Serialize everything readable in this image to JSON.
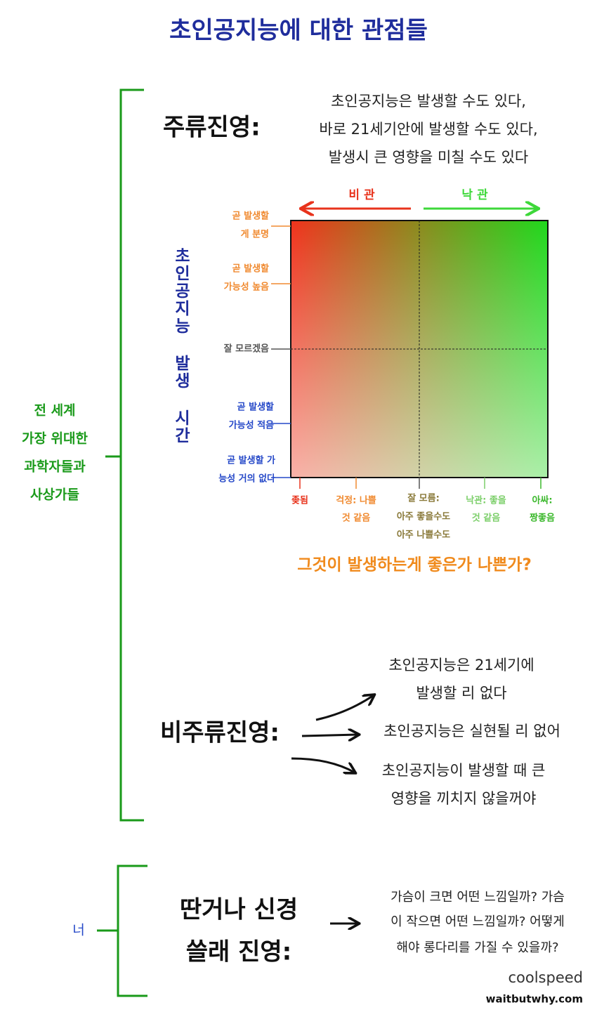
{
  "title": "초인공지능에 대한 관점들",
  "mainstream": {
    "label": "주류진영:",
    "description": [
      "초인공지능은 발생할 수도 있다,",
      "바로 21세기안에 발생할 수도 있다,",
      "발생시 큰 영향을 미칠 수도 있다"
    ]
  },
  "group": {
    "lines": [
      "전 세계",
      "가장 위대한",
      "과학자들과",
      "사상가들"
    ]
  },
  "chart": {
    "pessimism": "비 관",
    "optimism": "낙 관",
    "y_axis_label": "초인공지능 발생 시간",
    "y_labels": [
      [
        "곧 발생할",
        "게 분명"
      ],
      [
        "곧 발생할",
        "가능성 높음"
      ],
      [
        "잘 모르겠음"
      ],
      [
        "곧 발생할",
        "가능성 적음"
      ],
      [
        "곧 발생할 가",
        "능성 거의 없다"
      ]
    ],
    "x_labels": [
      [
        "좆됨"
      ],
      [
        "걱정: 나쁠",
        "것 같음"
      ],
      [
        "잘 모름:",
        "아주 좋을수도",
        "아주 나쁠수도"
      ],
      [
        "낙관: 좋을",
        "것 같음"
      ],
      [
        "아싸:",
        "짱좋음"
      ]
    ],
    "x_axis_title": "그것이 발생하는게 좋은가 나쁜가?"
  },
  "non_mainstream": {
    "label": "비주류진영:",
    "items": [
      [
        "초인공지능은 21세기에",
        "발생할 리 없다"
      ],
      [
        "초인공지능은 실현될 리 없어"
      ],
      [
        "초인공지능이 발생할 때 큰",
        "영향을 끼치지 않을꺼야"
      ]
    ]
  },
  "you": {
    "label": "너",
    "camp": [
      "딴거나 신경",
      "쓸래 진영:"
    ],
    "thought": [
      "가슴이 크면 어떤 느낌일까? 가슴",
      "이 작으면 어떤 느낌일까? 어떻게",
      "해야 롱다리를 가질 수 있을까?"
    ]
  },
  "credits": {
    "translator": "coolspeed",
    "source": "waitbutwhy.com"
  }
}
